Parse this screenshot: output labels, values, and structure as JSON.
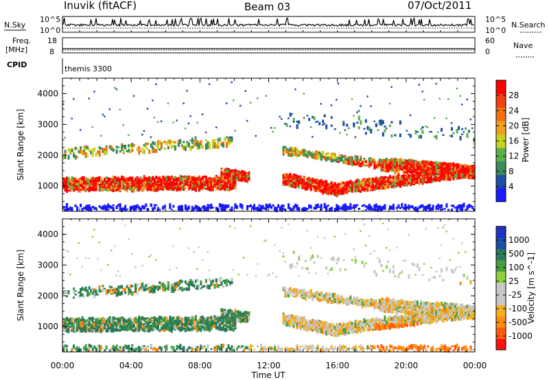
{
  "header": {
    "station": "Inuvik (fitACF)",
    "beam": "Beam 03",
    "date": "07/Oct/2011"
  },
  "aux_panels": {
    "nsky_label": "N.Sky",
    "nsky_ticks": [
      "10^5",
      "10^0"
    ],
    "nsearch_label": "N.Search",
    "nsearch_ticks": [
      "10^5",
      "10^0"
    ],
    "freq_label_1": "Freq.",
    "freq_label_2": "[MHz]",
    "freq_ticks": [
      "18",
      "8"
    ],
    "nave_label": "Nave",
    "nave_ticks": [
      "60",
      "0"
    ],
    "cpid_label": "CPID",
    "cpid_value": "themis 3300"
  },
  "colors": {
    "power_scale": [
      "#1a1aff",
      "#1e4fa8",
      "#3a8a5a",
      "#5ab04a",
      "#c8d020",
      "#f0a020",
      "#f07010",
      "#f04010",
      "#ff0000"
    ],
    "velocity_scale": [
      "#ff1010",
      "#ff5a10",
      "#ff8c10",
      "#f0b020",
      "#c8c8c8",
      "#c8c8c8",
      "#8ed040",
      "#4aa040",
      "#2a7a5a",
      "#1a4faa",
      "#2030c0"
    ]
  },
  "chart_data": [
    {
      "type": "heatmap",
      "title": "",
      "xlabel": "",
      "ylabel": "Slant Range [km]",
      "xlim": [
        "00:00",
        "00:00"
      ],
      "ylim": [
        180,
        4500
      ],
      "y_ticks": [
        "1000",
        "2000",
        "3000",
        "4000"
      ],
      "colorbar_label": "Power [dB]",
      "colorbar_ticks": [
        "4",
        "8",
        "12",
        "16",
        "20",
        "24",
        "28"
      ]
    },
    {
      "type": "heatmap",
      "title": "",
      "xlabel": "Time UT",
      "ylabel": "Slant Range [km]",
      "x_ticks": [
        "00:00",
        "04:00",
        "08:00",
        "12:00",
        "16:00",
        "20:00",
        "00:00"
      ],
      "ylim": [
        180,
        4500
      ],
      "y_ticks": [
        "1000",
        "2000",
        "3000",
        "4000"
      ],
      "colorbar_label": "Velocity [m s^-1]",
      "colorbar_ticks": [
        "-1000",
        "-500",
        "-100",
        "-25",
        "25",
        "100",
        "500",
        "1000"
      ]
    }
  ]
}
